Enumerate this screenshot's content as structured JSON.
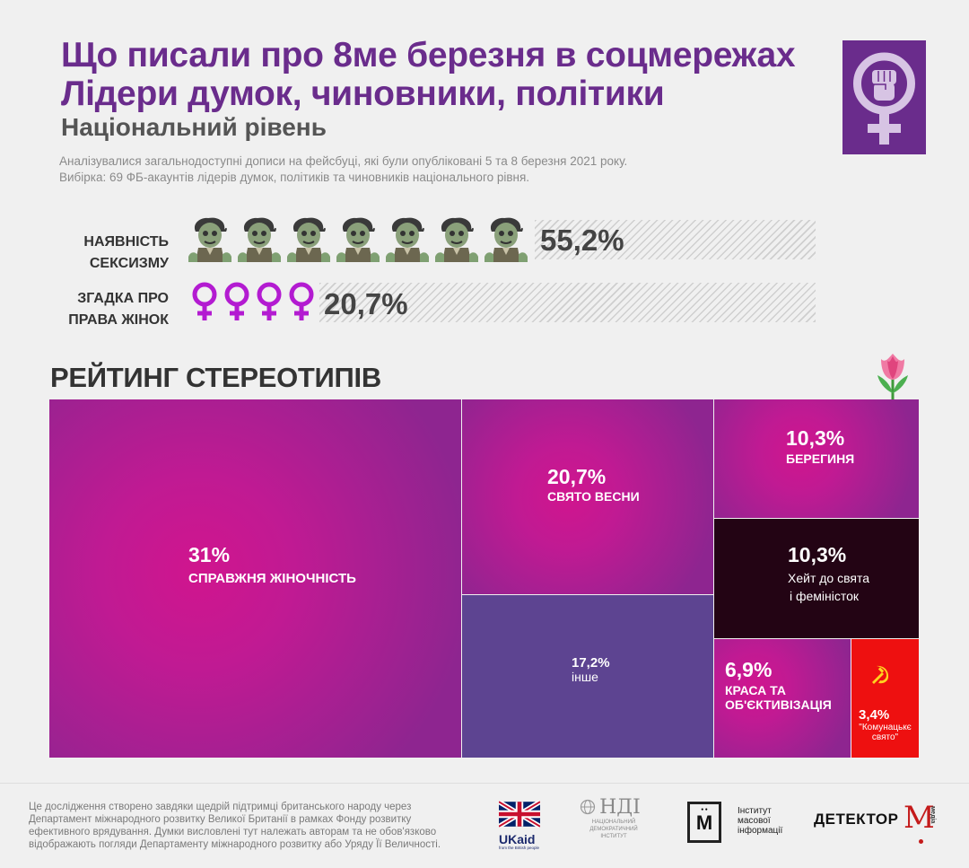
{
  "header": {
    "title_line1": "Що писали про 8ме березня в соцмережах",
    "title_line2": "Лідери думок, чиновники, політики",
    "subtitle": "Національний рівень",
    "note_line1": "Аналізувалися загальнодоступні дописи на фейсбуці, які були опубліковані 5 та 8 березня 2021 року.",
    "note_line2": "Вибірка: 69 ФБ-акаунтів лідерів думок, політиків та чиновників національного рівня."
  },
  "metrics": [
    {
      "label_line1": "НАЯВНІСТЬ",
      "label_line2": "СЕКСИЗМУ",
      "value": "55,2%",
      "percent": 55.2,
      "icon": "zombie-icon",
      "icon_count": 7
    },
    {
      "label_line1": "ЗГАДКА ПРО",
      "label_line2": "ПРАВА ЖІНОК",
      "value": "20,7%",
      "percent": 20.7,
      "icon": "venus-icon",
      "icon_count": 4
    }
  ],
  "rating_title": "РЕЙТИНГ СТЕРЕОТИПІВ",
  "chart_data": {
    "type": "treemap",
    "title": "РЕЙТИНГ СТЕРЕОТИПІВ",
    "items": [
      {
        "name": "СПРАВЖНЯ ЖІНОЧНІСТЬ",
        "value": 31,
        "label": "31%",
        "color": "#d0158e"
      },
      {
        "name": "СВЯТО ВЕСНИ",
        "value": 20.7,
        "label": "20,7%",
        "color": "#d0158e"
      },
      {
        "name": "інше",
        "value": 17.2,
        "label": "17,2%",
        "color": "#5d4491"
      },
      {
        "name": "БЕРЕГИНЯ",
        "value": 10.3,
        "label": "10,3%",
        "color": "#d0158e"
      },
      {
        "name": "Хейт до свята і феміністок",
        "value": 10.3,
        "label": "10,3%",
        "color": "#230414"
      },
      {
        "name": "КРАСА ТА ОБ'ЄКТИВІЗАЦІЯ",
        "value": 6.9,
        "label": "6,9%",
        "color": "#d0158e"
      },
      {
        "name": "\"Комунацькє свято\"",
        "value": 3.4,
        "label": "3,4%",
        "color": "#ee1010"
      }
    ]
  },
  "tiles": {
    "t1": {
      "pct": "31%",
      "lbl": "СПРАВЖНЯ ЖІНОЧНІСТЬ"
    },
    "t2": {
      "pct": "20,7%",
      "lbl": "СВЯТО ВЕСНИ"
    },
    "t3": {
      "pct": "17,2%",
      "lbl": "інше"
    },
    "t4": {
      "pct": "10,3%",
      "lbl": "БЕРЕГИНЯ"
    },
    "t5": {
      "pct": "10,3%",
      "lbl1": "Хейт до свята",
      "lbl2": "і феміністок"
    },
    "t6": {
      "pct": "6,9%",
      "lbl1": "КРАСА ТА",
      "lbl2": "ОБ'ЄКТИВІЗАЦІЯ"
    },
    "t7": {
      "pct": "3,4%",
      "lbl1": "\"Комунацькє",
      "lbl2": "свято\""
    }
  },
  "colors": {
    "title": "#6a2c8c",
    "magenta": "#d0158e",
    "purple_edge": "#8e2590",
    "other": "#5d4491",
    "hate": "#230414",
    "red": "#ee1010"
  },
  "footer": {
    "line1": "Це  дослідження створено завдяки щедрій підтримці британського народу через",
    "line2": "Департамент міжнародного розвитку Великої Британії в рамках Фонду розвитку",
    "line3": "ефективного врядування. Думки висловлені тут належать авторам та не обов'язково",
    "line4": "відображають погляди Департаменту міжнародного розвитку або Уряду Її Величності.",
    "ukaid_label": "UKaid",
    "ukaid_sub": "from the British people",
    "ndi_logo": "НДІ",
    "ndi_sub1": "НАЦІОНАЛЬНИЙ",
    "ndi_sub2": "ДЕМОКРАТИЧНИЙ",
    "ndi_sub3": "ІНСТИТУТ",
    "imi_letter": "М",
    "imi_line1": "Інститут",
    "imi_line2": "масової",
    "imi_line3": "інформації",
    "detector_label": "ДЕТЕКТОР",
    "detector_m": "М",
    "detector_media": "медіа"
  }
}
